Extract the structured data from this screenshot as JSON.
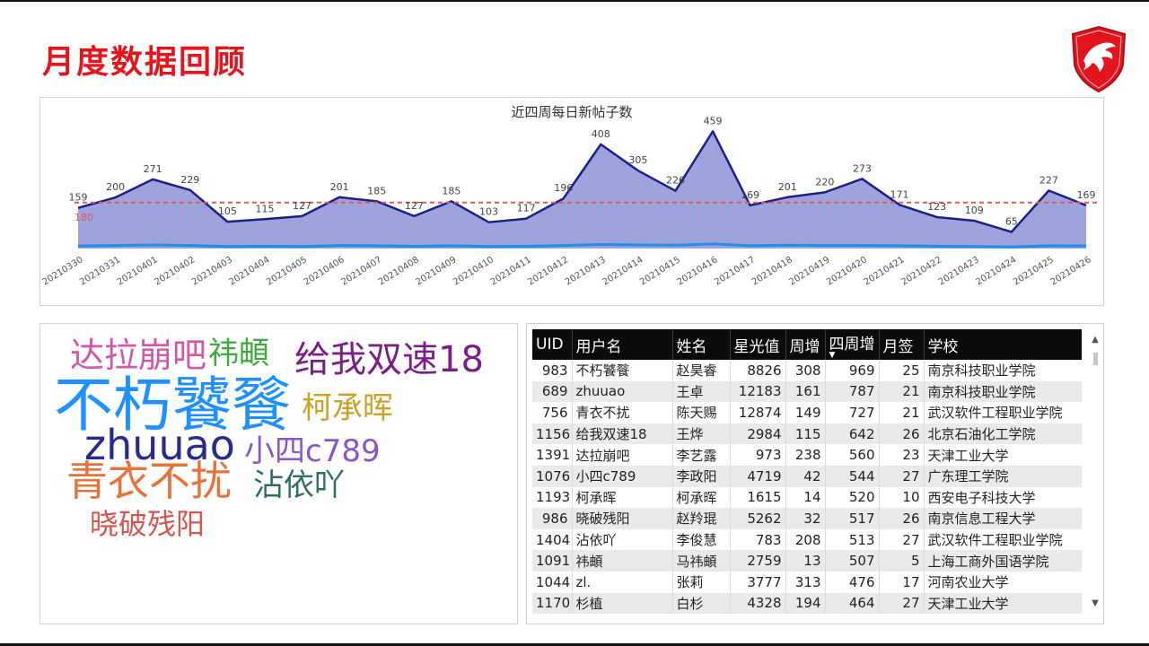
{
  "page": {
    "title": "月度数据回顾"
  },
  "logo": {
    "name": "dragon-shield-logo"
  },
  "chart_data": {
    "type": "area",
    "title": "近四周每日新帖子数",
    "categories": [
      "20210330",
      "20210331",
      "20210401",
      "20210402",
      "20210403",
      "20210404",
      "20210405",
      "20210406",
      "20210407",
      "20210408",
      "20210409",
      "20210410",
      "20210411",
      "20210412",
      "20210413",
      "20210414",
      "20210415",
      "20210416",
      "20210417",
      "20210418",
      "20210419",
      "20210420",
      "20210421",
      "20210422",
      "20210423",
      "20210424",
      "20210425",
      "20210426"
    ],
    "series": [
      {
        "values": [
          159,
          200,
          271,
          229,
          105,
          115,
          127,
          201,
          185,
          127,
          185,
          103,
          117,
          196,
          408,
          305,
          226,
          459,
          169,
          201,
          220,
          273,
          171,
          123,
          109,
          65,
          227,
          169
        ]
      },
      {
        "values": [
          10,
          12,
          14,
          12,
          8,
          9,
          8,
          12,
          11,
          9,
          11,
          8,
          9,
          12,
          16,
          14,
          13,
          18,
          11,
          13,
          12,
          12,
          11,
          9,
          8,
          6,
          11,
          10
        ]
      }
    ],
    "reference_line": {
      "value": 180,
      "label": "180"
    },
    "ylim": [
      0,
      520
    ],
    "colors": {
      "area": "#9ea3dc",
      "line": "#1a1f8a",
      "lower_line": "#1f8ef0",
      "reference": "#e05a5a",
      "label": "#444444"
    }
  },
  "word_cloud": [
    {
      "text": "达拉崩吧",
      "color": "#d457a6"
    },
    {
      "text": "祎頔",
      "color": "#3aaa3a"
    },
    {
      "text": "给我双速18",
      "color": "#7a1f86"
    },
    {
      "text": "不朽饕餮",
      "color": "#1e90ff"
    },
    {
      "text": "柯承晖",
      "color": "#c9a227"
    },
    {
      "text": "zhuuao",
      "color": "#2a2a8c"
    },
    {
      "text": "小四c789",
      "color": "#8b55c8"
    },
    {
      "text": "青衣不扰",
      "color": "#e8733a"
    },
    {
      "text": "沾依吖",
      "color": "#2e6e63"
    },
    {
      "text": "晓破残阳",
      "color": "#d9534f"
    }
  ],
  "table": {
    "columns": [
      "UID",
      "用户名",
      "姓名",
      "星光值",
      "周增",
      "四周增",
      "月签",
      "学校"
    ],
    "sort_indicator": "▼",
    "rows": [
      [
        "983",
        "不朽饕餮",
        "赵昊睿",
        "8826",
        "308",
        "969",
        "25",
        "南京科技职业学院"
      ],
      [
        "689",
        "zhuuao",
        "王卓",
        "12183",
        "161",
        "787",
        "21",
        "南京科技职业学院"
      ],
      [
        "756",
        "青衣不扰",
        "陈天赐",
        "12874",
        "149",
        "727",
        "21",
        "武汉软件工程职业学院"
      ],
      [
        "1156",
        "给我双速18",
        "王烨",
        "2984",
        "115",
        "642",
        "26",
        "北京石油化工学院"
      ],
      [
        "1391",
        "达拉崩吧",
        "李艺露",
        "973",
        "238",
        "560",
        "23",
        "天津工业大学"
      ],
      [
        "1076",
        "小四c789",
        "李政阳",
        "4719",
        "42",
        "544",
        "27",
        "广东理工学院"
      ],
      [
        "1193",
        "柯承晖",
        "柯承晖",
        "1615",
        "14",
        "520",
        "10",
        "西安电子科技大学"
      ],
      [
        "986",
        "晓破残阳",
        "赵羚琨",
        "5262",
        "32",
        "517",
        "26",
        "南京信息工程大学"
      ],
      [
        "1404",
        "沾依吖",
        "李俊慧",
        "783",
        "208",
        "513",
        "27",
        "武汉软件工程职业学院"
      ],
      [
        "1091",
        "祎頔",
        "马祎頔",
        "2759",
        "13",
        "507",
        "5",
        "上海工商外国语学院"
      ],
      [
        "1044",
        "zl.",
        "张莉",
        "3777",
        "313",
        "476",
        "17",
        "河南农业大学"
      ],
      [
        "1170",
        "杉植",
        "白杉",
        "4328",
        "194",
        "464",
        "27",
        "天津工业大学"
      ]
    ]
  }
}
